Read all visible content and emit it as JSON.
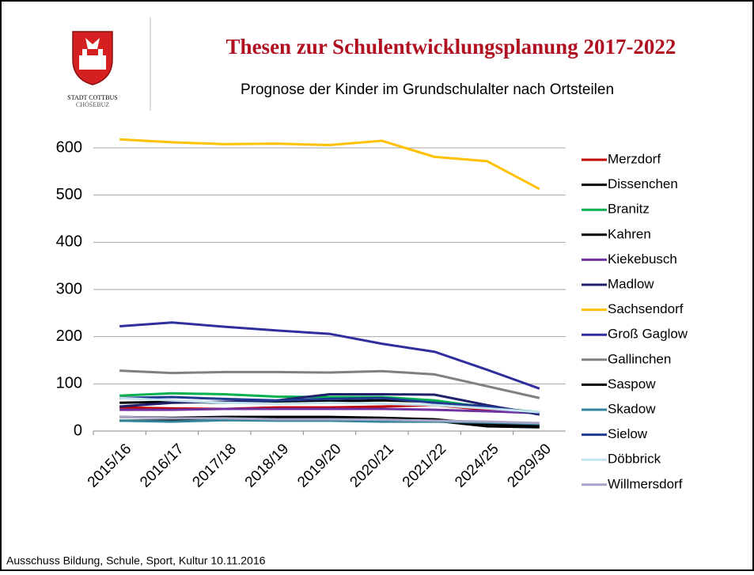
{
  "header": {
    "logo_line1": "STADT COTTBUS",
    "logo_line2": "CHÓŚEBUZ",
    "title": "Thesen zur Schulentwicklungsplanung 2017-2022"
  },
  "footer": "Ausschuss Bildung, Schule, Sport, Kultur 10.11.2016",
  "chart_data": {
    "type": "line",
    "title": "Prognose der Kinder im Grundschulalter nach Ortsteilen",
    "categories": [
      "2015/16",
      "2016/17",
      "2017/18",
      "2018/19",
      "2019/20",
      "2020/21",
      "2021/22",
      "2024/25",
      "2029/30"
    ],
    "ylim": [
      0,
      600
    ],
    "yticks": [
      0,
      100,
      200,
      300,
      400,
      500,
      600
    ],
    "grid": true,
    "legend": "right",
    "series": [
      {
        "name": "Merzdorf",
        "color": "#c00000",
        "values": [
          50,
          48,
          47,
          50,
          50,
          52,
          55,
          45,
          38
        ]
      },
      {
        "name": "Dissenchen",
        "color": "#000000",
        "values": [
          60,
          62,
          60,
          62,
          63,
          65,
          62,
          52,
          38
        ]
      },
      {
        "name": "Branitz",
        "color": "#00b050",
        "values": [
          75,
          80,
          78,
          73,
          72,
          72,
          65,
          50,
          40
        ]
      },
      {
        "name": "Kahren",
        "color": "#000000",
        "values": [
          22,
          22,
          25,
          28,
          25,
          25,
          22,
          10,
          8
        ]
      },
      {
        "name": "Kiekebusch",
        "color": "#7030a0",
        "values": [
          45,
          45,
          47,
          47,
          47,
          47,
          45,
          42,
          38
        ]
      },
      {
        "name": "Madlow",
        "color": "#1f1f6b",
        "values": [
          52,
          60,
          62,
          65,
          78,
          78,
          77,
          55,
          35
        ]
      },
      {
        "name": "Sachsendorf",
        "color": "#ffc000",
        "values": [
          618,
          612,
          608,
          609,
          606,
          615,
          581,
          572,
          513
        ]
      },
      {
        "name": "Groß Gaglow",
        "color": "#2e2e9e",
        "values": [
          222,
          230,
          221,
          213,
          206,
          185,
          168,
          130,
          90
        ]
      },
      {
        "name": "Gallinchen",
        "color": "#808080",
        "values": [
          128,
          123,
          125,
          125,
          124,
          127,
          120,
          95,
          70
        ]
      },
      {
        "name": "Saspow",
        "color": "#000000",
        "values": [
          30,
          28,
          30,
          30,
          30,
          28,
          25,
          15,
          12
        ]
      },
      {
        "name": "Skadow",
        "color": "#31849b",
        "values": [
          22,
          20,
          23,
          22,
          22,
          20,
          20,
          18,
          15
        ]
      },
      {
        "name": "Sielow",
        "color": "#1f3a93",
        "values": [
          70,
          72,
          68,
          65,
          68,
          70,
          60,
          52,
          38
        ]
      },
      {
        "name": "Döbbrick",
        "color": "#c5e3ef",
        "values": [
          70,
          65,
          60,
          58,
          60,
          58,
          55,
          48,
          40
        ]
      },
      {
        "name": "Willmersdorf",
        "color": "#a6a6c8",
        "values": [
          30,
          27,
          27,
          25,
          25,
          24,
          22,
          20,
          17
        ]
      }
    ]
  }
}
